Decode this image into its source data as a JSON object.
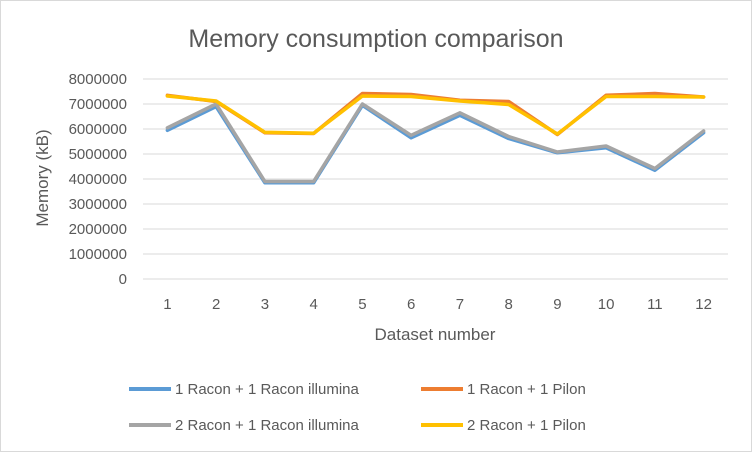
{
  "chart_data": {
    "type": "line",
    "title": "Memory consumption comparison",
    "xlabel": "Dataset number",
    "ylabel": "Memory (kB)",
    "categories": [
      "1",
      "2",
      "3",
      "4",
      "5",
      "6",
      "7",
      "8",
      "9",
      "10",
      "11",
      "12"
    ],
    "ylim": [
      0,
      8000000
    ],
    "yticks": [
      "0",
      "1000000",
      "2000000",
      "3000000",
      "4000000",
      "5000000",
      "6000000",
      "7000000",
      "8000000"
    ],
    "grid": true,
    "legend_position": "bottom",
    "series": [
      {
        "name": "1 Racon + 1 Racon illumina",
        "color": "#5b9bd5",
        "values": [
          5950000,
          6900000,
          3850000,
          3850000,
          6950000,
          5650000,
          6550000,
          5620000,
          5050000,
          5250000,
          4350000,
          5850000
        ]
      },
      {
        "name": "1 Racon + 1 Pilon",
        "color": "#ed7d31",
        "values": [
          7350000,
          7100000,
          5850000,
          5820000,
          7420000,
          7380000,
          7150000,
          7100000,
          5780000,
          7350000,
          7420000,
          7280000
        ]
      },
      {
        "name": "2 Racon + 1 Racon illumina",
        "color": "#a5a5a5",
        "values": [
          6050000,
          7000000,
          3900000,
          3900000,
          7000000,
          5750000,
          6650000,
          5700000,
          5080000,
          5320000,
          4420000,
          5920000
        ]
      },
      {
        "name": "2 Racon + 1 Pilon",
        "color": "#ffc000",
        "values": [
          7320000,
          7120000,
          5870000,
          5830000,
          7320000,
          7300000,
          7120000,
          6980000,
          5800000,
          7300000,
          7300000,
          7280000
        ]
      }
    ]
  }
}
